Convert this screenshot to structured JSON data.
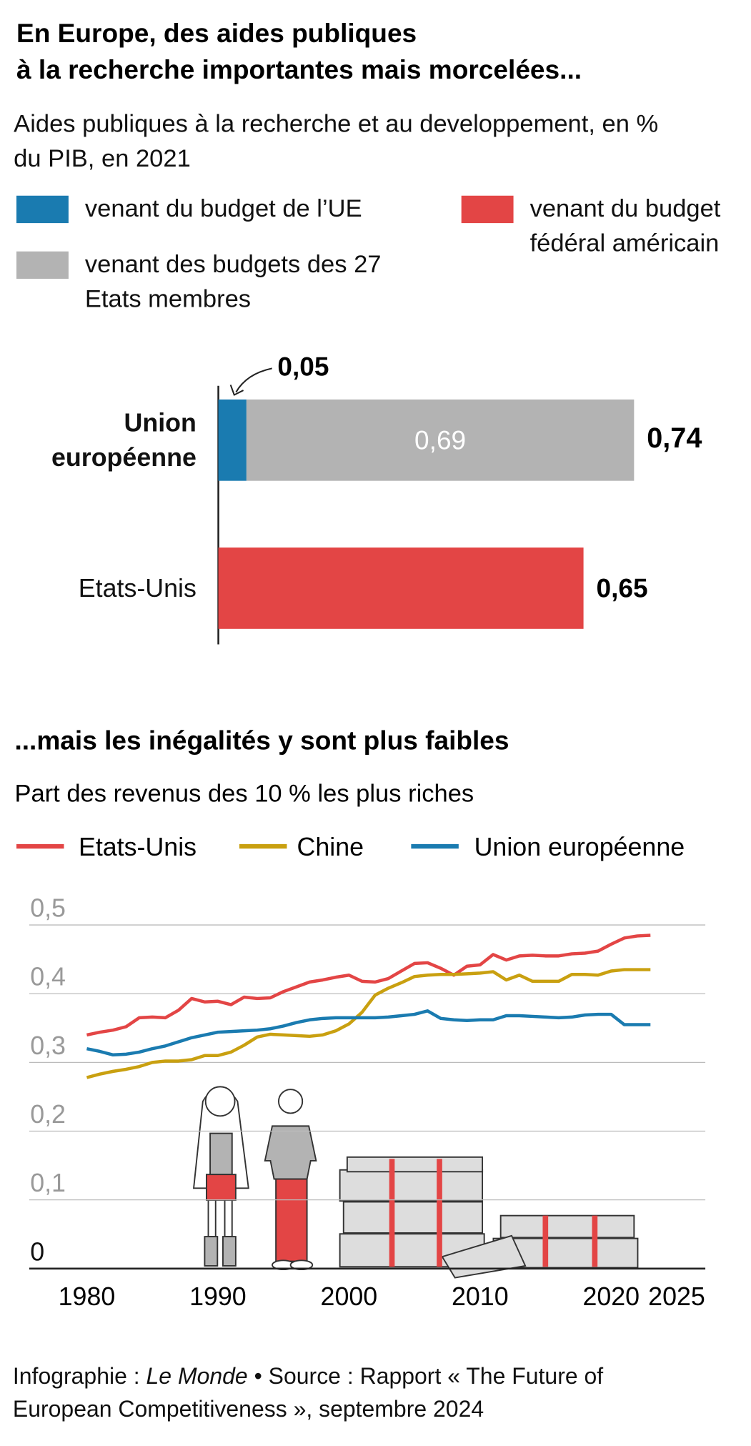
{
  "chart_data": [
    {
      "type": "bar",
      "orientation": "horizontal",
      "stacked": true,
      "title": [
        "En Europe, des aides publiques",
        "à la recherche importantes mais morcelées..."
      ],
      "subtitle": "Aides publiques à la recherche et au developpement, en % du PIB, en 2021",
      "categories": [
        "Union européenne",
        "Etats-Unis"
      ],
      "series": [
        {
          "name": "venant du budget de l’UE",
          "color": "#1a7bb0",
          "values": [
            0.05,
            null
          ],
          "value_labels": [
            "0,05",
            null
          ]
        },
        {
          "name": "venant des budgets des 27 Etats membres",
          "color": "#b3b3b3",
          "values": [
            0.69,
            null
          ],
          "value_labels": [
            "0,69",
            null
          ]
        },
        {
          "name": "venant du budget fédéral américain",
          "color": "#e34545",
          "values": [
            null,
            0.65
          ],
          "value_labels": [
            null,
            "0,65"
          ]
        }
      ],
      "total_label": "0,74"
    },
    {
      "type": "line",
      "title": "...mais les inégalités y sont plus faibles",
      "subtitle": "Part des revenus des 10 % les plus riches",
      "x": [
        1980,
        1981,
        1982,
        1983,
        1984,
        1985,
        1986,
        1987,
        1988,
        1989,
        1990,
        1991,
        1992,
        1993,
        1994,
        1995,
        1996,
        1997,
        1998,
        1999,
        2000,
        2001,
        2002,
        2003,
        2004,
        2005,
        2006,
        2007,
        2008,
        2009,
        2010,
        2011,
        2012,
        2013,
        2014,
        2015,
        2016,
        2017,
        2018,
        2019,
        2020,
        2021,
        2022,
        2023
      ],
      "series": [
        {
          "name": "Etats-Unis",
          "color": "#e34545",
          "values": [
            0.34,
            0.344,
            0.347,
            0.352,
            0.365,
            0.366,
            0.365,
            0.376,
            0.393,
            0.388,
            0.389,
            0.384,
            0.395,
            0.393,
            0.394,
            0.403,
            0.41,
            0.417,
            0.42,
            0.424,
            0.427,
            0.418,
            0.417,
            0.422,
            0.433,
            0.444,
            0.445,
            0.437,
            0.427,
            0.44,
            0.442,
            0.457,
            0.449,
            0.455,
            0.456,
            0.455,
            0.455,
            0.458,
            0.459,
            0.462,
            0.472,
            0.481,
            0.484,
            0.485
          ]
        },
        {
          "name": "Chine",
          "color": "#c9a010",
          "values": [
            0.278,
            0.283,
            0.287,
            0.29,
            0.294,
            0.3,
            0.302,
            0.302,
            0.304,
            0.31,
            0.31,
            0.315,
            0.325,
            0.337,
            0.341,
            0.34,
            0.339,
            0.338,
            0.34,
            0.346,
            0.356,
            0.373,
            0.398,
            0.408,
            0.416,
            0.425,
            0.427,
            0.428,
            0.428,
            0.429,
            0.43,
            0.432,
            0.42,
            0.427,
            0.418,
            0.418,
            0.418,
            0.428,
            0.428,
            0.427,
            0.433,
            0.435,
            0.435,
            0.435
          ]
        },
        {
          "name": "Union européenne",
          "color": "#1a7bb0",
          "values": [
            0.32,
            0.316,
            0.311,
            0.312,
            0.315,
            0.32,
            0.324,
            0.33,
            0.336,
            0.34,
            0.344,
            0.345,
            0.346,
            0.347,
            0.349,
            0.353,
            0.358,
            0.362,
            0.364,
            0.365,
            0.365,
            0.365,
            0.365,
            0.366,
            0.368,
            0.37,
            0.375,
            0.364,
            0.362,
            0.361,
            0.362,
            0.362,
            0.368,
            0.368,
            0.367,
            0.366,
            0.365,
            0.366,
            0.369,
            0.37,
            0.37,
            0.355,
            0.355,
            0.355
          ]
        }
      ],
      "xlim": [
        1975,
        2026
      ],
      "xticks": [
        1980,
        1990,
        2000,
        2010,
        2020,
        2025
      ],
      "ylim": [
        0,
        0.5
      ],
      "yticks": [
        0,
        {
          "value": 0.1,
          "label": "0,1"
        },
        {
          "value": 0.2,
          "label": "0,2"
        },
        {
          "value": 0.3,
          "label": "0,3"
        },
        {
          "value": 0.4,
          "label": "0,4"
        },
        {
          "value": 0.5,
          "label": "0,5"
        }
      ],
      "grid": true
    }
  ],
  "footer": {
    "credit": "Infographie :",
    "publisher": "Le Monde",
    "separator": "•",
    "source": "Source : Rapport « The Future of European Competitiveness », septembre 2024"
  }
}
